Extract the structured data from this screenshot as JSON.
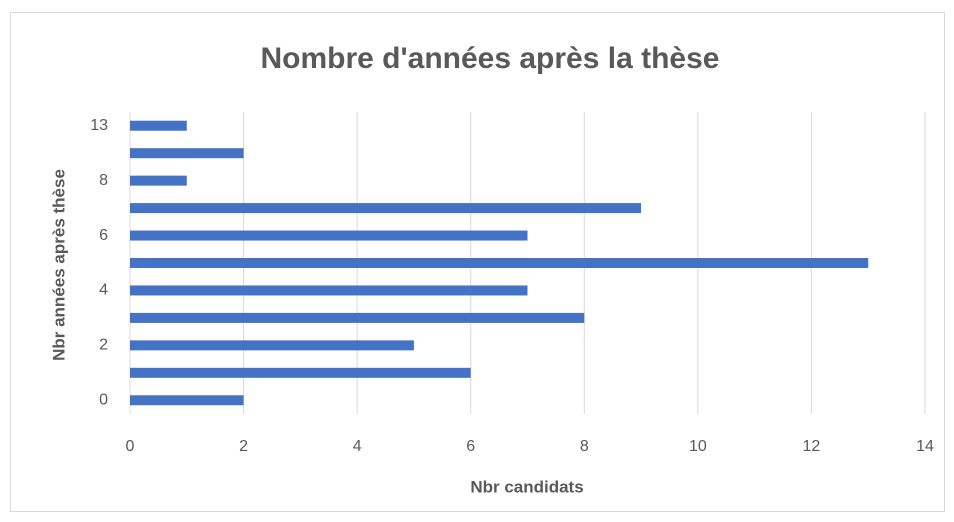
{
  "chart_data": {
    "type": "bar",
    "orientation": "horizontal",
    "title": "Nombre d'années après la thèse",
    "x_label": "Nbr candidats",
    "y_label": "Nbr années après thèse",
    "categories": [
      0,
      null,
      2,
      null,
      4,
      null,
      6,
      null,
      8,
      null,
      13
    ],
    "values": [
      2,
      6,
      5,
      8,
      7,
      13,
      7,
      9,
      1,
      2,
      1
    ],
    "color": "#4472c4",
    "xlim": [
      0,
      14
    ],
    "xticks": [
      0,
      2,
      4,
      6,
      8,
      10,
      12,
      14
    ],
    "grid": true
  }
}
